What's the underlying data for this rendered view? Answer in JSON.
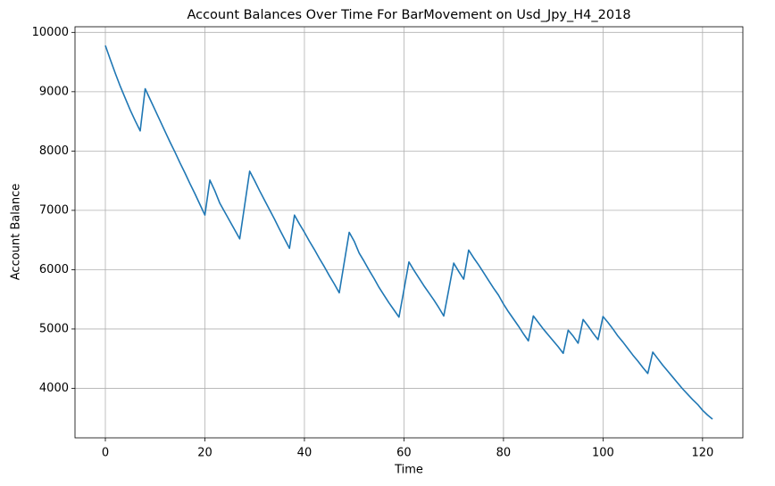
{
  "chart_data": {
    "type": "line",
    "title": "Account Balances Over Time For BarMovement on Usd_Jpy_H4_2018",
    "x_label": "Time",
    "y_label": "Account Balance",
    "x": [
      0,
      1,
      2,
      3,
      4,
      5,
      6,
      7,
      8,
      9,
      10,
      11,
      12,
      13,
      14,
      15,
      16,
      17,
      18,
      19,
      20,
      21,
      22,
      23,
      24,
      25,
      26,
      27,
      28,
      29,
      30,
      31,
      32,
      33,
      34,
      35,
      36,
      37,
      38,
      39,
      40,
      41,
      42,
      43,
      44,
      45,
      46,
      47,
      48,
      49,
      50,
      51,
      52,
      53,
      54,
      55,
      56,
      57,
      58,
      59,
      60,
      61,
      62,
      63,
      64,
      65,
      66,
      67,
      68,
      69,
      70,
      71,
      72,
      73,
      74,
      75,
      76,
      77,
      78,
      79,
      80,
      81,
      82,
      83,
      84,
      85,
      86,
      87,
      88,
      89,
      90,
      91,
      92,
      93,
      94,
      95,
      96,
      97,
      98,
      99,
      100,
      101,
      102,
      103,
      104,
      105,
      106,
      107,
      108,
      109,
      110,
      111,
      112,
      113,
      114,
      115,
      116,
      117,
      118,
      119,
      120,
      121,
      122
    ],
    "series": [
      {
        "name": "Account Balance",
        "color": "#1f77b4",
        "values": [
          9780,
          9540,
          9310,
          9090,
          8890,
          8690,
          8510,
          8340,
          9050,
          8870,
          8690,
          8510,
          8330,
          8150,
          7980,
          7800,
          7630,
          7450,
          7280,
          7100,
          6920,
          7510,
          7330,
          7120,
          6970,
          6820,
          6670,
          6520,
          7090,
          7660,
          7500,
          7330,
          7170,
          7010,
          6850,
          6680,
          6520,
          6360,
          6920,
          6770,
          6630,
          6480,
          6340,
          6190,
          6050,
          5900,
          5760,
          5610,
          6120,
          6630,
          6480,
          6280,
          6140,
          5990,
          5850,
          5700,
          5570,
          5440,
          5320,
          5200,
          5660,
          6130,
          5990,
          5860,
          5730,
          5610,
          5490,
          5360,
          5220,
          5660,
          6110,
          5970,
          5840,
          6330,
          6200,
          6080,
          5950,
          5820,
          5690,
          5570,
          5420,
          5290,
          5170,
          5050,
          4920,
          4800,
          5220,
          5110,
          5000,
          4900,
          4800,
          4700,
          4590,
          4980,
          4880,
          4760,
          5160,
          5050,
          4930,
          4820,
          5210,
          5110,
          5000,
          4880,
          4780,
          4670,
          4560,
          4460,
          4350,
          4250,
          4610,
          4500,
          4390,
          4290,
          4190,
          4090,
          3990,
          3900,
          3810,
          3730,
          3630,
          3550,
          3480
        ]
      }
    ],
    "xlim": [
      -6.1,
      128.1
    ],
    "xticks": [
      0,
      20,
      40,
      60,
      80,
      100,
      120
    ],
    "ylim": [
      3165,
      10095
    ],
    "yticks": [
      4000,
      5000,
      6000,
      7000,
      8000,
      9000,
      10000
    ],
    "grid": true
  }
}
